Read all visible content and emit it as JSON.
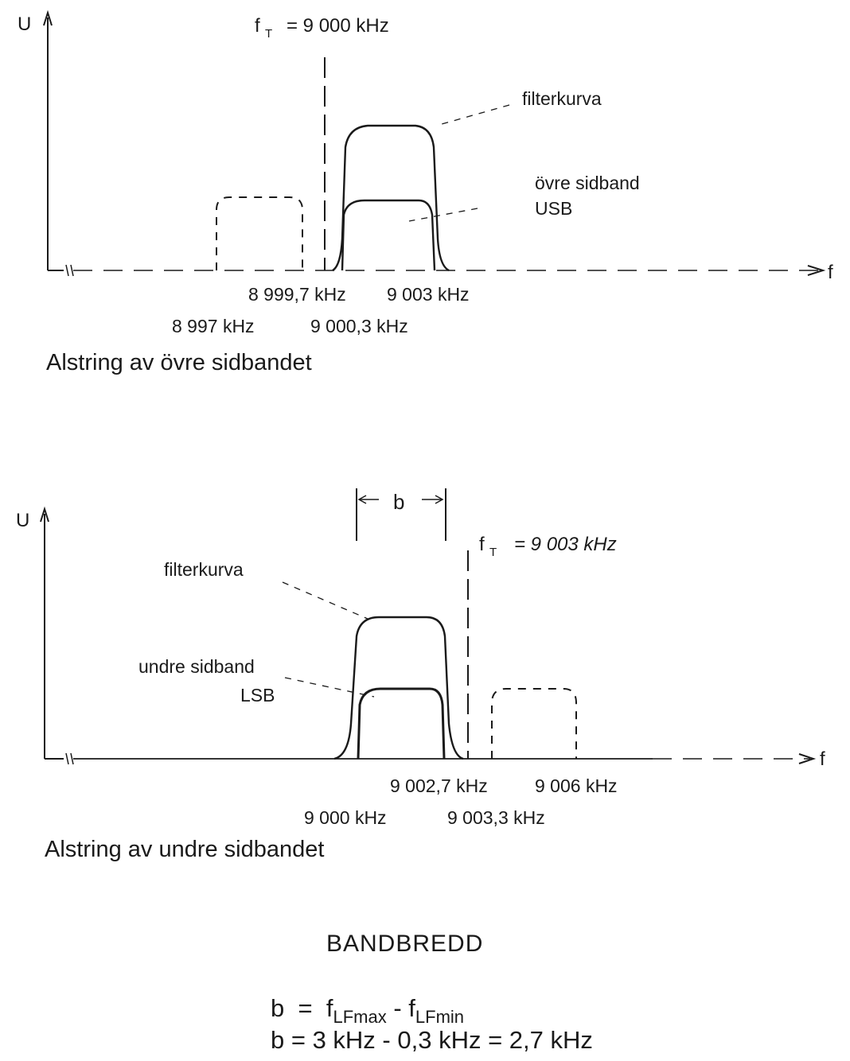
{
  "upper_diagram": {
    "y_axis_label": "U",
    "x_axis_label": "f",
    "carrier_label": "f",
    "carrier_sub": "T",
    "carrier_value": "= 9 000 kHz",
    "filter_label": "filterkurva",
    "sideband_label_1": "övre sidband",
    "sideband_label_2": "USB",
    "freq_labels": [
      "8 999,7 kHz",
      "9 003 kHz",
      "8 997 kHz",
      "9 000,3 kHz"
    ],
    "caption": "Alstring av övre sidbandet"
  },
  "lower_diagram": {
    "y_axis_label": "U",
    "x_axis_label": "f",
    "bandwidth_label": "b",
    "carrier_label": "f",
    "carrier_sub": "T",
    "carrier_value": "= 9 003 kHz",
    "filter_label": "filterkurva",
    "sideband_label_1": "undre sidband",
    "sideband_label_2": "LSB",
    "freq_labels": [
      "9 002,7 kHz",
      "9 006 kHz",
      "9 000 kHz",
      "9 003,3 kHz"
    ],
    "caption": "Alstring av undre sidbandet"
  },
  "bandwidth": {
    "title": "BANDBREDD",
    "line1_lhs": "b",
    "line1_eq": "=",
    "line1_f1": "f",
    "line1_f1_sub": "LFmax",
    "line1_minus": "-",
    "line1_f2": "f",
    "line1_f2_sub": "LFmin",
    "line2": "b = 3 kHz - 0,3 kHz = 2,7 kHz"
  }
}
